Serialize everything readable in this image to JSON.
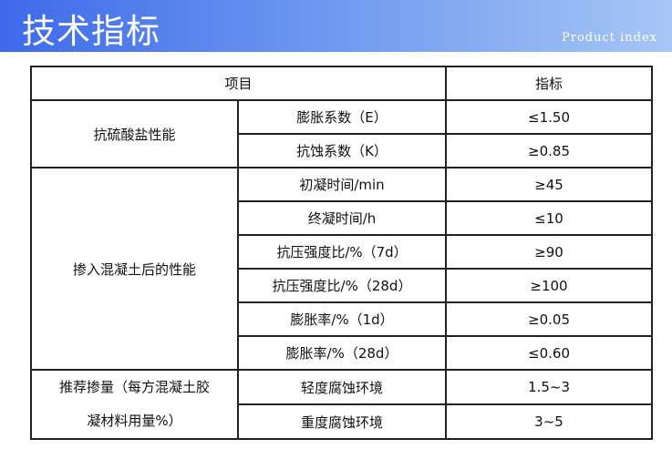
{
  "header": {
    "title": "技术指标",
    "subtitle": "Product index"
  },
  "table": {
    "headers": [
      "项目",
      "指标"
    ],
    "groups": [
      {
        "label": "抗硫酸盐性能",
        "rows": [
          {
            "item": "膨胀系数（E）",
            "value": "≤1.50"
          },
          {
            "item": "抗蚀系数（K）",
            "value": "≥0.85"
          }
        ]
      },
      {
        "label": "掺入混凝土后的性能",
        "rows": [
          {
            "item": "初凝时间/min",
            "value": "≥45"
          },
          {
            "item": "终凝时间/h",
            "value": "≤10"
          },
          {
            "item": "抗压强度比/%（7d）",
            "value": "≥90"
          },
          {
            "item": "抗压强度比/%（28d）",
            "value": "≥100"
          },
          {
            "item": "膨胀率/%（1d）",
            "value": "≥0.05"
          },
          {
            "item": "膨胀率/%（28d）",
            "value": "≤0.60"
          }
        ]
      },
      {
        "label_line1": "推荐掺量（每方混凝土胶",
        "label_line2": "凝材料用量%）",
        "rows": [
          {
            "item": "轻度腐蚀环境",
            "value": "1.5~3"
          },
          {
            "item": "重度腐蚀环境",
            "value": "3~5"
          }
        ]
      }
    ]
  }
}
